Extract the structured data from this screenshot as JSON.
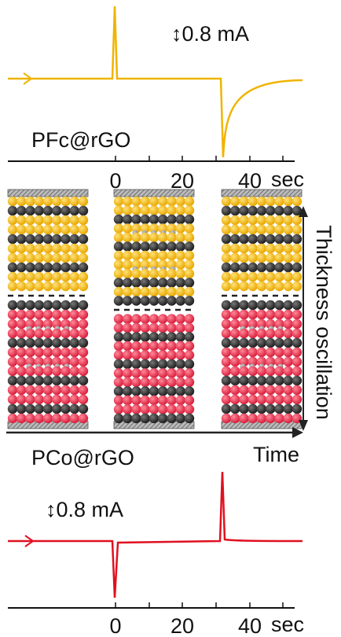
{
  "top_panel": {
    "scale": "↕0.8 mA",
    "label": "PFc@rGO",
    "ticks": [
      "0",
      "20",
      "40"
    ],
    "unit": "sec"
  },
  "middle": {
    "thickness_label": "Thickness oscillation",
    "time_label": "Time"
  },
  "bottom_panel": {
    "scale": "↕0.8 mA",
    "label": "PCo@rGO",
    "ticks": [
      "0",
      "20",
      "40"
    ],
    "unit": "sec"
  }
}
